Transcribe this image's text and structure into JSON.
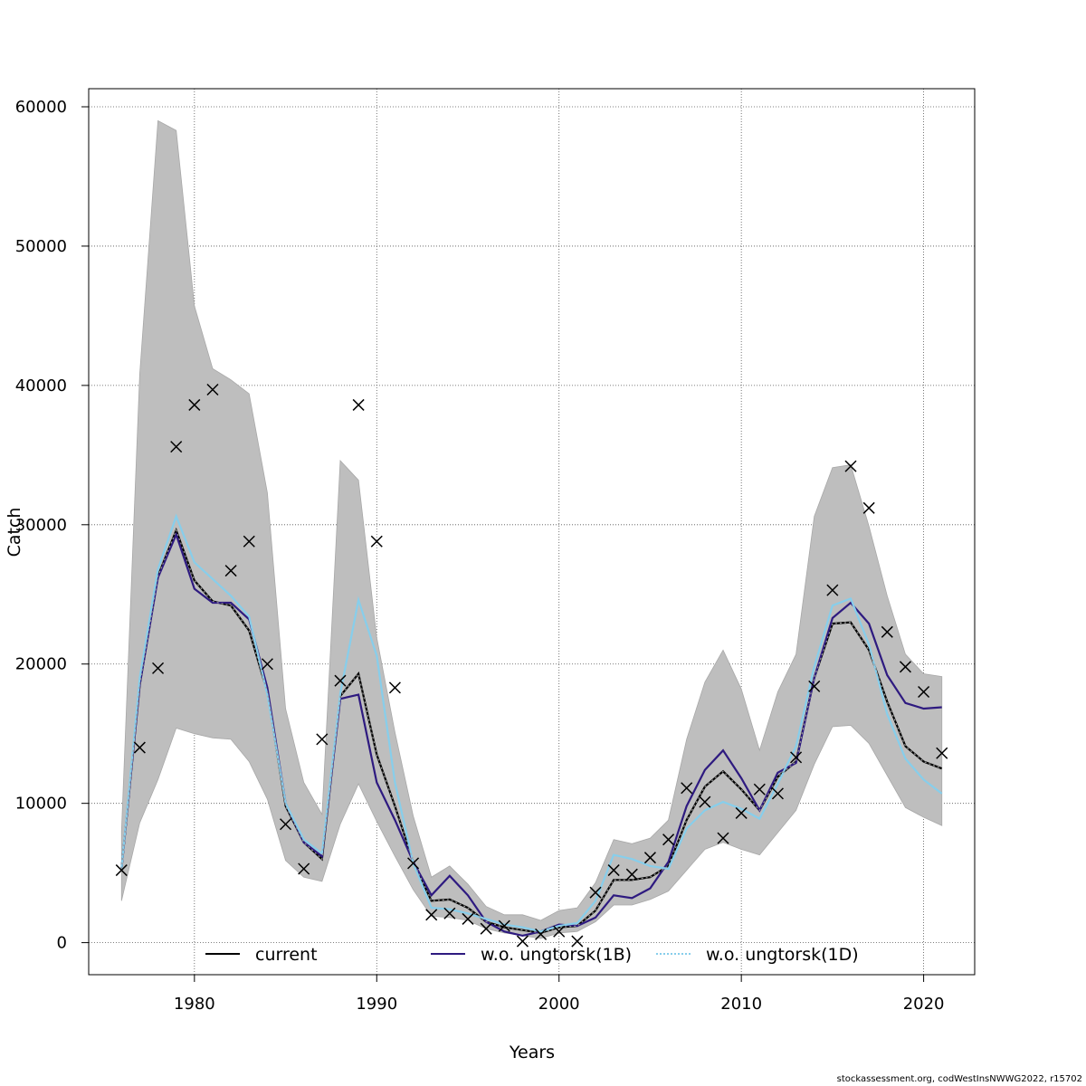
{
  "chart_data": {
    "type": "line",
    "xlabel": "Years",
    "ylabel": "Catch",
    "xlim": [
      1974.2,
      2022.8
    ],
    "ylim": [
      -2300,
      61300
    ],
    "xticks": [
      1980,
      1990,
      2000,
      2010,
      2020
    ],
    "yticks": [
      0,
      10000,
      20000,
      30000,
      40000,
      50000,
      60000
    ],
    "grid": true,
    "legend_position": "bottom",
    "x": [
      1976,
      1977,
      1978,
      1979,
      1980,
      1981,
      1982,
      1983,
      1984,
      1985,
      1986,
      1987,
      1988,
      1989,
      1990,
      1991,
      1992,
      1993,
      1994,
      1995,
      1996,
      1997,
      1998,
      1999,
      2000,
      2001,
      2002,
      2003,
      2004,
      2005,
      2006,
      2007,
      2008,
      2009,
      2010,
      2011,
      2012,
      2013,
      2014,
      2015,
      2016,
      2017,
      2018,
      2019,
      2020,
      2021
    ],
    "series": [
      {
        "name": "current",
        "color": "#000000",
        "style": "solid",
        "values": [
          5300,
          18500,
          26300,
          29600,
          26000,
          24500,
          24200,
          22400,
          18000,
          9800,
          7200,
          6000,
          17700,
          19300,
          13500,
          9800,
          5800,
          3000,
          3100,
          2500,
          1500,
          1100,
          900,
          700,
          1100,
          1200,
          2300,
          4500,
          4500,
          4700,
          5500,
          8800,
          11200,
          12300,
          11000,
          9500,
          11900,
          13000,
          19000,
          22900,
          23000,
          21000,
          17300,
          14100,
          13000,
          12500
        ]
      },
      {
        "name": "w.o. ungtorsk(1B)",
        "color": "#2e1a80",
        "style": "solid",
        "values": [
          5300,
          18500,
          26200,
          29300,
          25400,
          24400,
          24400,
          23200,
          18300,
          10000,
          7200,
          6200,
          17500,
          17800,
          11500,
          8800,
          5800,
          3400,
          4800,
          3400,
          1500,
          800,
          500,
          800,
          1300,
          1200,
          1800,
          3400,
          3200,
          3900,
          5800,
          9800,
          12400,
          13800,
          11800,
          9500,
          12200,
          12900,
          19000,
          23300,
          24400,
          22900,
          19200,
          17200,
          16800,
          16900
        ]
      },
      {
        "name": "w.o. ungtorsk(1D)",
        "color": "#87ceeb",
        "style": "dotted",
        "values": [
          5300,
          19000,
          26800,
          30600,
          27300,
          26100,
          24900,
          23400,
          17800,
          10000,
          7400,
          6400,
          17900,
          24600,
          20600,
          11500,
          5700,
          2500,
          2400,
          2100,
          1700,
          1300,
          1100,
          800,
          1200,
          1400,
          3000,
          6300,
          6000,
          5500,
          5300,
          8200,
          9500,
          10100,
          9600,
          8900,
          11400,
          14100,
          19800,
          24200,
          24700,
          21400,
          16400,
          13200,
          11700,
          10700
        ]
      },
      {
        "name": "confidence band",
        "color": "#bebebe",
        "style": "area",
        "lower": [
          3000,
          8600,
          11700,
          15400,
          15000,
          14700,
          14600,
          13000,
          10300,
          5900,
          4700,
          4400,
          8500,
          11400,
          8700,
          6200,
          3800,
          1900,
          1800,
          1600,
          1000,
          700,
          500,
          300,
          700,
          800,
          1500,
          2700,
          2700,
          3100,
          3700,
          5200,
          6700,
          7200,
          6700,
          6300,
          7900,
          9500,
          12800,
          15500,
          15600,
          14300,
          12000,
          9700,
          9000,
          8400
        ],
        "upper": [
          8000,
          40800,
          59000,
          58300,
          45700,
          41200,
          40400,
          39400,
          32300,
          16800,
          11500,
          9200,
          34600,
          33200,
          21900,
          15100,
          9100,
          4700,
          5500,
          4200,
          2600,
          2000,
          2000,
          1600,
          2300,
          2500,
          4300,
          7400,
          7100,
          7500,
          8800,
          14600,
          18700,
          21000,
          18200,
          13800,
          18000,
          20700,
          30600,
          34100,
          34300,
          29900,
          24900,
          20700,
          19300,
          19100
        ]
      }
    ],
    "observations": {
      "marker": "x",
      "values": [
        5200,
        14000,
        19700,
        35600,
        38600,
        39700,
        26700,
        28800,
        20000,
        8500,
        5300,
        14600,
        18800,
        38600,
        28800,
        18300,
        5700,
        2000,
        2100,
        1700,
        1000,
        1200,
        100,
        600,
        800,
        100,
        3600,
        5200,
        4900,
        6100,
        7400,
        11100,
        10100,
        7500,
        9300,
        11000,
        10700,
        13300,
        18400,
        25300,
        34200,
        31200,
        22300,
        19800,
        18000,
        13600
      ]
    }
  },
  "legend": {
    "items": [
      {
        "label": "current"
      },
      {
        "label": "w.o. ungtorsk(1B)"
      },
      {
        "label": "w.o. ungtorsk(1D)"
      }
    ]
  },
  "footer": {
    "text": "stockassessment.org, codWestInsNWWG2022, r15702"
  }
}
